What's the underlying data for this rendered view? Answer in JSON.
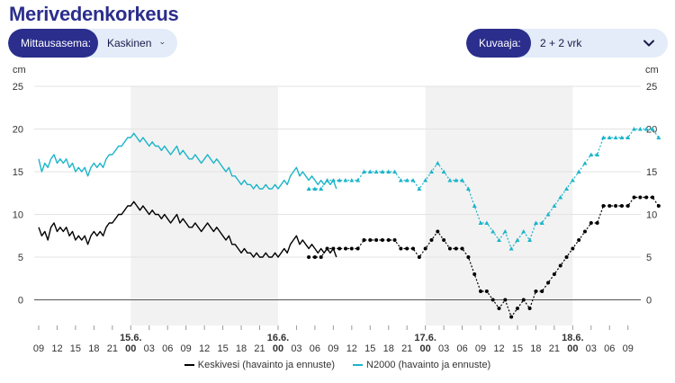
{
  "page": {
    "title": "Merivedenkorkeus"
  },
  "controls": {
    "station": {
      "label": "Mittausasema:",
      "value": "Kaskinen"
    },
    "graph": {
      "label": "Kuvaaja:",
      "value": "2 + 2 vrk"
    }
  },
  "icons": {
    "dropdown": "chevron-down-icon"
  },
  "colors": {
    "accent": "#2b2e8c",
    "control_bg": "#e3ecf8",
    "series1": "#000000",
    "series2": "#1bb5c9",
    "shade": "#f2f2f2"
  },
  "chart_data": {
    "type": "line",
    "y_unit_left": "cm",
    "y_unit_right": "cm",
    "ylim": [
      -3,
      25
    ],
    "yticks": [
      0,
      5,
      10,
      15,
      20,
      25
    ],
    "xlim": [
      0,
      99
    ],
    "x_unit": "hours since first tick (15.6. 00 = 15)",
    "hour_ticks": [
      "09",
      "12",
      "15",
      "18",
      "21",
      "00",
      "03",
      "06",
      "09",
      "12",
      "15",
      "18",
      "21",
      "00",
      "03",
      "06",
      "09",
      "12",
      "15",
      "18",
      "21",
      "00",
      "03",
      "06",
      "09",
      "12",
      "15",
      "18",
      "21",
      "00",
      "03",
      "06",
      "09"
    ],
    "day_labels": [
      {
        "label": "15.6.",
        "x": 15
      },
      {
        "label": "16.6.",
        "x": 39
      },
      {
        "label": "17.6.",
        "x": 63
      },
      {
        "label": "18.6.",
        "x": 87
      }
    ],
    "shaded_days": [
      [
        15,
        39
      ],
      [
        63,
        87
      ]
    ],
    "grid": true,
    "legend_position": "bottom",
    "series": [
      {
        "name": "Keskivesi (havainto ja ennuste)",
        "color": "#000000",
        "observed": [
          [
            0,
            8.5
          ],
          [
            0.5,
            7.5
          ],
          [
            1,
            8
          ],
          [
            1.5,
            7
          ],
          [
            2,
            8.5
          ],
          [
            2.5,
            9
          ],
          [
            3,
            8
          ],
          [
            3.5,
            8.5
          ],
          [
            4,
            8
          ],
          [
            4.5,
            8.5
          ],
          [
            5,
            7.5
          ],
          [
            5.5,
            8
          ],
          [
            6,
            7
          ],
          [
            6.5,
            7.5
          ],
          [
            7,
            7
          ],
          [
            7.5,
            7.5
          ],
          [
            8,
            6.5
          ],
          [
            8.5,
            7.5
          ],
          [
            9,
            8
          ],
          [
            9.5,
            7.5
          ],
          [
            10,
            8
          ],
          [
            10.5,
            7.5
          ],
          [
            11,
            8.5
          ],
          [
            11.5,
            9
          ],
          [
            12,
            9
          ],
          [
            12.5,
            9.5
          ],
          [
            13,
            10
          ],
          [
            13.5,
            10
          ],
          [
            14,
            10.5
          ],
          [
            14.5,
            11
          ],
          [
            15,
            11
          ],
          [
            15.5,
            11.5
          ],
          [
            16,
            11
          ],
          [
            16.5,
            10.5
          ],
          [
            17,
            11
          ],
          [
            17.5,
            10.5
          ],
          [
            18,
            10
          ],
          [
            18.5,
            10.5
          ],
          [
            19,
            10
          ],
          [
            19.5,
            10
          ],
          [
            20,
            9.5
          ],
          [
            20.5,
            10
          ],
          [
            21,
            9.5
          ],
          [
            21.5,
            9
          ],
          [
            22,
            9.5
          ],
          [
            22.5,
            10
          ],
          [
            23,
            9
          ],
          [
            23.5,
            9.5
          ],
          [
            24,
            9
          ],
          [
            24.5,
            8.5
          ],
          [
            25,
            8.5
          ],
          [
            25.5,
            9
          ],
          [
            26,
            8.5
          ],
          [
            26.5,
            8
          ],
          [
            27,
            8.5
          ],
          [
            27.5,
            9
          ],
          [
            28,
            8.5
          ],
          [
            28.5,
            8
          ],
          [
            29,
            8.5
          ],
          [
            29.5,
            8
          ],
          [
            30,
            7.5
          ],
          [
            30.5,
            7
          ],
          [
            31,
            7.5
          ],
          [
            31.5,
            6.5
          ],
          [
            32,
            6.5
          ],
          [
            32.5,
            6
          ],
          [
            33,
            5.5
          ],
          [
            33.5,
            6
          ],
          [
            34,
            5.5
          ],
          [
            34.5,
            5.5
          ],
          [
            35,
            5
          ],
          [
            35.5,
            5.5
          ],
          [
            36,
            5
          ],
          [
            36.5,
            5
          ],
          [
            37,
            5.5
          ],
          [
            37.5,
            5
          ],
          [
            38,
            5
          ],
          [
            38.5,
            5.5
          ],
          [
            39,
            5
          ],
          [
            39.5,
            5.5
          ],
          [
            40,
            6
          ],
          [
            40.5,
            5.5
          ],
          [
            41,
            6.5
          ],
          [
            41.5,
            7
          ],
          [
            42,
            7.5
          ],
          [
            42.5,
            6.5
          ],
          [
            43,
            7
          ],
          [
            43.5,
            6.5
          ],
          [
            44,
            6
          ],
          [
            44.5,
            6.5
          ],
          [
            45,
            6
          ],
          [
            45.5,
            5.5
          ],
          [
            46,
            6
          ],
          [
            46.5,
            5.5
          ],
          [
            47,
            6
          ],
          [
            47.5,
            5.5
          ],
          [
            48,
            6
          ],
          [
            48.5,
            5
          ]
        ],
        "forecast": [
          [
            44,
            5
          ],
          [
            45,
            5
          ],
          [
            46,
            5
          ],
          [
            47,
            6
          ],
          [
            48,
            6
          ],
          [
            49,
            6
          ],
          [
            50,
            6
          ],
          [
            51,
            6
          ],
          [
            52,
            6
          ],
          [
            53,
            7
          ],
          [
            54,
            7
          ],
          [
            55,
            7
          ],
          [
            56,
            7
          ],
          [
            57,
            7
          ],
          [
            58,
            7
          ],
          [
            59,
            6
          ],
          [
            60,
            6
          ],
          [
            61,
            6
          ],
          [
            62,
            5
          ],
          [
            63,
            6
          ],
          [
            64,
            7
          ],
          [
            65,
            8
          ],
          [
            66,
            7
          ],
          [
            67,
            6
          ],
          [
            68,
            6
          ],
          [
            69,
            6
          ],
          [
            70,
            5
          ],
          [
            71,
            3
          ],
          [
            72,
            1
          ],
          [
            73,
            1
          ],
          [
            74,
            0
          ],
          [
            75,
            -1
          ],
          [
            76,
            0
          ],
          [
            77,
            -2
          ],
          [
            78,
            -1
          ],
          [
            79,
            0
          ],
          [
            80,
            -1
          ],
          [
            81,
            1
          ],
          [
            82,
            1
          ],
          [
            83,
            2
          ],
          [
            84,
            3
          ],
          [
            85,
            4
          ],
          [
            86,
            5
          ],
          [
            87,
            6
          ],
          [
            88,
            7
          ],
          [
            89,
            8
          ],
          [
            90,
            9
          ],
          [
            91,
            9
          ],
          [
            92,
            11
          ],
          [
            93,
            11
          ],
          [
            94,
            11
          ],
          [
            95,
            11
          ],
          [
            96,
            11
          ],
          [
            97,
            12
          ],
          [
            98,
            12
          ],
          [
            99,
            12
          ],
          [
            100,
            12
          ],
          [
            101,
            11
          ]
        ]
      },
      {
        "name": "N2000 (havainto ja ennuste)",
        "color": "#1bb5c9",
        "observed": [
          [
            0,
            16.5
          ],
          [
            0.5,
            15
          ],
          [
            1,
            16
          ],
          [
            1.5,
            15.5
          ],
          [
            2,
            16.5
          ],
          [
            2.5,
            17
          ],
          [
            3,
            16
          ],
          [
            3.5,
            16.5
          ],
          [
            4,
            16
          ],
          [
            4.5,
            16.5
          ],
          [
            5,
            15.5
          ],
          [
            5.5,
            16
          ],
          [
            6,
            15
          ],
          [
            6.5,
            15.5
          ],
          [
            7,
            15
          ],
          [
            7.5,
            15.5
          ],
          [
            8,
            14.5
          ],
          [
            8.5,
            15.5
          ],
          [
            9,
            16
          ],
          [
            9.5,
            15.5
          ],
          [
            10,
            16
          ],
          [
            10.5,
            15.5
          ],
          [
            11,
            16.5
          ],
          [
            11.5,
            17
          ],
          [
            12,
            17
          ],
          [
            12.5,
            17.5
          ],
          [
            13,
            18
          ],
          [
            13.5,
            18
          ],
          [
            14,
            18.5
          ],
          [
            14.5,
            19
          ],
          [
            15,
            19
          ],
          [
            15.5,
            19.5
          ],
          [
            16,
            19
          ],
          [
            16.5,
            18.5
          ],
          [
            17,
            19
          ],
          [
            17.5,
            18.5
          ],
          [
            18,
            18
          ],
          [
            18.5,
            18.5
          ],
          [
            19,
            18
          ],
          [
            19.5,
            18
          ],
          [
            20,
            17.5
          ],
          [
            20.5,
            18
          ],
          [
            21,
            17.5
          ],
          [
            21.5,
            17
          ],
          [
            22,
            17.5
          ],
          [
            22.5,
            18
          ],
          [
            23,
            17
          ],
          [
            23.5,
            17.5
          ],
          [
            24,
            17
          ],
          [
            24.5,
            16.5
          ],
          [
            25,
            16.5
          ],
          [
            25.5,
            17
          ],
          [
            26,
            16.5
          ],
          [
            26.5,
            16
          ],
          [
            27,
            16.5
          ],
          [
            27.5,
            17
          ],
          [
            28,
            16.5
          ],
          [
            28.5,
            16
          ],
          [
            29,
            16.5
          ],
          [
            29.5,
            16
          ],
          [
            30,
            15.5
          ],
          [
            30.5,
            15
          ],
          [
            31,
            15.5
          ],
          [
            31.5,
            14.5
          ],
          [
            32,
            14.5
          ],
          [
            32.5,
            14
          ],
          [
            33,
            13.5
          ],
          [
            33.5,
            14
          ],
          [
            34,
            13.5
          ],
          [
            34.5,
            13.5
          ],
          [
            35,
            13
          ],
          [
            35.5,
            13.5
          ],
          [
            36,
            13
          ],
          [
            36.5,
            13
          ],
          [
            37,
            13.5
          ],
          [
            37.5,
            13
          ],
          [
            38,
            13
          ],
          [
            38.5,
            13.5
          ],
          [
            39,
            13
          ],
          [
            39.5,
            13.5
          ],
          [
            40,
            14
          ],
          [
            40.5,
            13.5
          ],
          [
            41,
            14.5
          ],
          [
            41.5,
            15
          ],
          [
            42,
            15.5
          ],
          [
            42.5,
            14.5
          ],
          [
            43,
            15
          ],
          [
            43.5,
            14.5
          ],
          [
            44,
            14
          ],
          [
            44.5,
            14.5
          ],
          [
            45,
            14
          ],
          [
            45.5,
            13.5
          ],
          [
            46,
            14
          ],
          [
            46.5,
            13.5
          ],
          [
            47,
            14
          ],
          [
            47.5,
            13.5
          ],
          [
            48,
            14
          ],
          [
            48.5,
            13
          ]
        ],
        "forecast": [
          [
            44,
            13
          ],
          [
            45,
            13
          ],
          [
            46,
            13
          ],
          [
            47,
            14
          ],
          [
            48,
            14
          ],
          [
            49,
            14
          ],
          [
            50,
            14
          ],
          [
            51,
            14
          ],
          [
            52,
            14
          ],
          [
            53,
            15
          ],
          [
            54,
            15
          ],
          [
            55,
            15
          ],
          [
            56,
            15
          ],
          [
            57,
            15
          ],
          [
            58,
            15
          ],
          [
            59,
            14
          ],
          [
            60,
            14
          ],
          [
            61,
            14
          ],
          [
            62,
            13
          ],
          [
            63,
            14
          ],
          [
            64,
            15
          ],
          [
            65,
            16
          ],
          [
            66,
            15
          ],
          [
            67,
            14
          ],
          [
            68,
            14
          ],
          [
            69,
            14
          ],
          [
            70,
            13
          ],
          [
            71,
            11
          ],
          [
            72,
            9
          ],
          [
            73,
            9
          ],
          [
            74,
            8
          ],
          [
            75,
            7
          ],
          [
            76,
            8
          ],
          [
            77,
            6
          ],
          [
            78,
            7
          ],
          [
            79,
            8
          ],
          [
            80,
            7
          ],
          [
            81,
            9
          ],
          [
            82,
            9
          ],
          [
            83,
            10
          ],
          [
            84,
            11
          ],
          [
            85,
            12
          ],
          [
            86,
            13
          ],
          [
            87,
            14
          ],
          [
            88,
            15
          ],
          [
            89,
            16
          ],
          [
            90,
            17
          ],
          [
            91,
            17
          ],
          [
            92,
            19
          ],
          [
            93,
            19
          ],
          [
            94,
            19
          ],
          [
            95,
            19
          ],
          [
            96,
            19
          ],
          [
            97,
            20
          ],
          [
            98,
            20
          ],
          [
            99,
            20
          ],
          [
            100,
            20
          ],
          [
            101,
            19
          ]
        ]
      }
    ]
  }
}
